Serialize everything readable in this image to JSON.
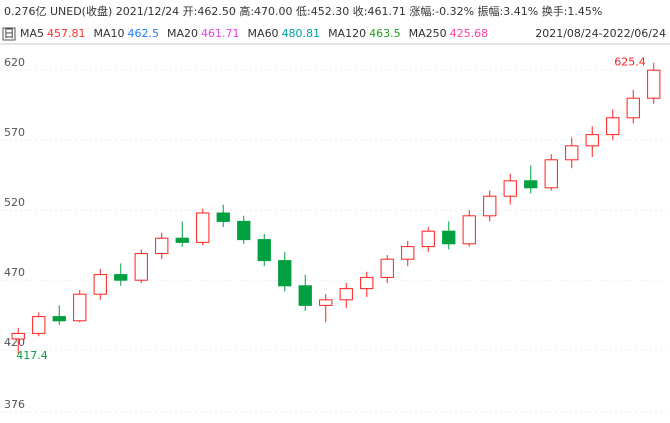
{
  "chart_data": {
    "type": "candlestick",
    "header": "0.276亿 UNED(收盘) 2021/12/24 开:462.50 高:470.00 低:452.30 收:461.71 涨幅:-0.32% 振幅:3.41% 换手:1.45%",
    "period": "日",
    "date_range": "2021/08/24-2022/06/24",
    "ma": [
      {
        "name": "MA5",
        "value": 457.81,
        "color": "#ff3030"
      },
      {
        "name": "MA10",
        "value": 462.5,
        "color": "#2080ff"
      },
      {
        "name": "MA20",
        "value": 461.71,
        "color": "#e040e0"
      },
      {
        "name": "MA60",
        "value": 480.81,
        "color": "#00a0a0"
      },
      {
        "name": "MA120",
        "value": 463.5,
        "color": "#20a020"
      },
      {
        "name": "MA250",
        "value": 425.68,
        "color": "#ff40a0"
      }
    ],
    "up_color": "#ff2020",
    "down_color": "#00a040",
    "open": [
      428,
      432,
      444,
      441,
      460,
      474,
      470,
      489,
      500,
      497,
      518,
      512,
      499,
      484,
      466,
      452,
      456,
      464,
      472,
      485,
      494,
      505,
      496,
      516,
      530,
      541,
      536,
      556,
      566,
      574,
      586,
      600
    ],
    "high": [
      436,
      447,
      452,
      463,
      478,
      482,
      492,
      504,
      512,
      521,
      524,
      516,
      503,
      490,
      474,
      460,
      468,
      476,
      488,
      498,
      508,
      512,
      520,
      534,
      546,
      552,
      560,
      572,
      580,
      592,
      606,
      625.4
    ],
    "low": [
      417.4,
      430,
      438,
      440,
      456,
      466,
      468,
      485,
      494,
      495,
      508,
      496,
      480,
      462,
      448,
      440,
      450,
      458,
      468,
      480,
      490,
      492,
      494,
      512,
      524,
      532,
      534,
      550,
      558,
      570,
      582,
      596
    ],
    "close": [
      432,
      444,
      441,
      460,
      474,
      470,
      489,
      500,
      497,
      518,
      512,
      499,
      484,
      466,
      452,
      456,
      464,
      472,
      485,
      494,
      505,
      496,
      516,
      530,
      541,
      536,
      556,
      566,
      574,
      586,
      600,
      620
    ],
    "ylim": [
      368,
      638
    ],
    "yticks": [
      376,
      420,
      470,
      520,
      570,
      620
    ]
  }
}
